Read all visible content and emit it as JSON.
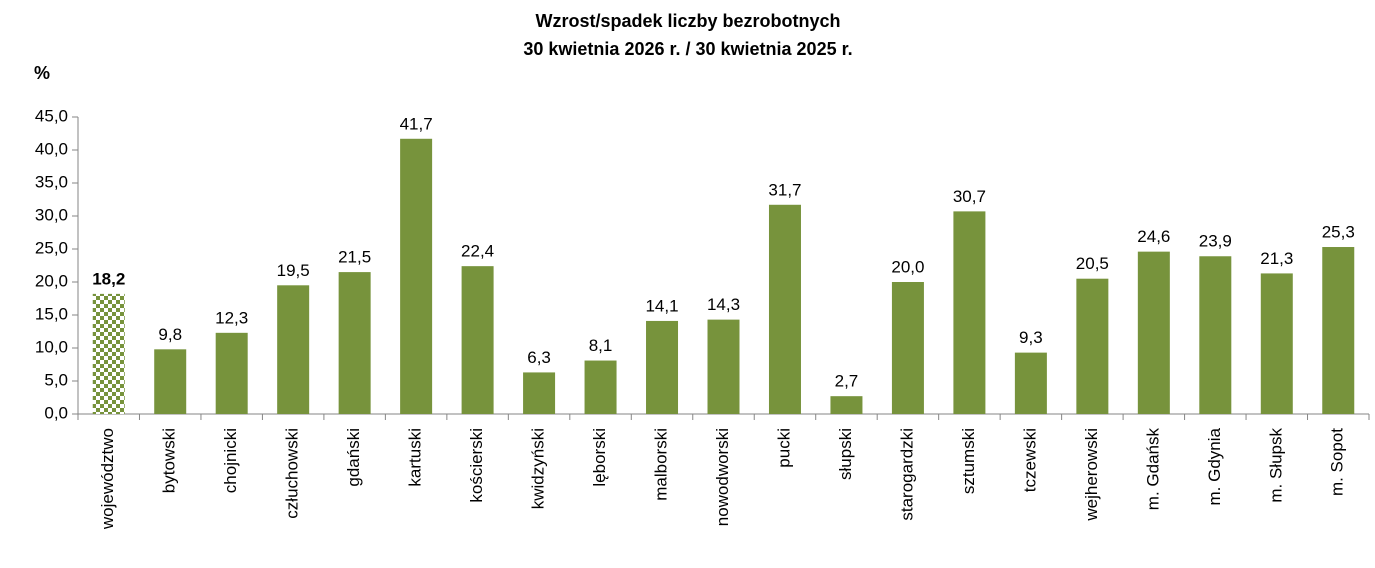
{
  "chart_data": {
    "type": "bar",
    "title": "Wzrost/spadek liczby bezrobotnych",
    "subtitle": "30 kwietnia 2026 r. / 30 kwietnia 2025 r.",
    "y_label": "%",
    "categories": [
      "województwo",
      "bytowski",
      "chojnicki",
      "człuchowski",
      "gdański",
      "kartuski",
      "kościerski",
      "kwidzyński",
      "lęborski",
      "malborski",
      "nowodworski",
      "pucki",
      "słupski",
      "starogardzki",
      "sztumski",
      "tczewski",
      "wejherowski",
      "m. Gdańsk",
      "m. Gdynia",
      "m. Słupsk",
      "m. Sopot"
    ],
    "values": [
      18.2,
      9.8,
      12.3,
      19.5,
      21.5,
      41.7,
      22.4,
      6.3,
      8.1,
      14.1,
      14.3,
      31.7,
      2.7,
      20.0,
      30.7,
      9.3,
      20.5,
      24.6,
      23.9,
      21.3,
      25.3
    ],
    "value_labels": [
      "18,2",
      "9,8",
      "12,3",
      "19,5",
      "21,5",
      "41,7",
      "22,4",
      "6,3",
      "8,1",
      "14,1",
      "14,3",
      "31,7",
      "2,7",
      "20,0",
      "30,7",
      "9,3",
      "20,5",
      "24,6",
      "23,9",
      "21,3",
      "25,3"
    ],
    "color": "#77933c",
    "highlight": 0,
    "ylim": [
      0,
      45
    ],
    "yticks": [
      {
        "value": 0,
        "label": "0,0"
      },
      {
        "value": 5,
        "label": "5,0"
      },
      {
        "value": 10,
        "label": "10,0"
      },
      {
        "value": 15,
        "label": "15,0"
      },
      {
        "value": 20,
        "label": "20,0"
      },
      {
        "value": 25,
        "label": "25,0"
      },
      {
        "value": 30,
        "label": "30,0"
      },
      {
        "value": 35,
        "label": "35,0"
      },
      {
        "value": 40,
        "label": "40,0"
      },
      {
        "value": 45,
        "label": "45,0"
      }
    ],
    "grid": false
  }
}
